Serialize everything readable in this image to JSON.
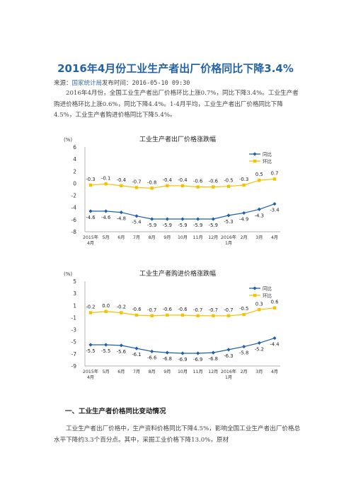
{
  "article": {
    "title": "2016年4月份工业生产者出厂价格同比下降3.4%",
    "source_prefix": "来源：",
    "source_name": "国家统计局",
    "publish_label": "发布时间：",
    "publish_time": "2016-05-10  09:30",
    "intro": "2016年4月份，全国工业生产者出厂价格环比上涨0.7%，同比下降3.4%。工业生产者购进价格环比上涨0.6%，同比下降4.4%。1-4月平均，工业生产者出厂价格同比下降4.5%，工业生产者购进价格同比下降5.4%。",
    "section1_heading": "一、工业生产者价格同比变动情况",
    "section1_text": "工业生产者出厂价格中，生产资料价格同比下降4.5%，影响全国工业生产者出厂价格总水平下降约3.3个百分点。其中，采掘工业价格下降13.0%，原材"
  },
  "chart_data": [
    {
      "type": "line",
      "title": "工业生产者出厂价格涨跌幅",
      "unit_label": "(%)",
      "categories": [
        "2015年\n4月",
        "5月",
        "6月",
        "7月",
        "8月",
        "9月",
        "10月",
        "11月",
        "12月",
        "2016年\n1月",
        "2月",
        "3月",
        "4月"
      ],
      "ylim": [
        -8,
        6
      ],
      "yticks": [
        -8,
        -6,
        -4,
        -2,
        0,
        2,
        4,
        6
      ],
      "series": [
        {
          "name": "同比",
          "color": "#1f5fae",
          "values": [
            -4.6,
            -4.6,
            -4.8,
            -5.4,
            -5.9,
            -5.9,
            -5.9,
            -5.9,
            -5.9,
            -5.3,
            -4.9,
            -4.3,
            -3.4
          ]
        },
        {
          "name": "环比",
          "color": "#f4c200",
          "values": [
            -0.3,
            -0.1,
            -0.4,
            -0.7,
            -0.8,
            -0.4,
            -0.4,
            -0.6,
            -0.6,
            -0.5,
            -0.3,
            0.5,
            0.7
          ]
        }
      ],
      "legend": "top-right",
      "grid": false
    },
    {
      "type": "line",
      "title": "工业生产者购进价格涨跌幅",
      "unit_label": "(%)",
      "categories": [
        "2015年\n4月",
        "5月",
        "6月",
        "7月",
        "8月",
        "9月",
        "10月",
        "11月",
        "12月",
        "2016年\n1月",
        "2月",
        "3月",
        "4月"
      ],
      "ylim": [
        -9,
        5
      ],
      "yticks": [
        -9,
        -7,
        -5,
        -3,
        -1,
        1,
        3,
        5
      ],
      "series": [
        {
          "name": "同比",
          "color": "#1f5fae",
          "values": [
            -5.5,
            -5.5,
            -5.6,
            -6.1,
            -6.6,
            -6.8,
            -6.9,
            -6.9,
            -6.8,
            -6.3,
            -5.8,
            -5.2,
            -4.4
          ]
        },
        {
          "name": "环比",
          "color": "#f4c200",
          "values": [
            -0.2,
            0.0,
            -0.2,
            -0.6,
            -0.7,
            -0.6,
            -0.6,
            -0.7,
            -0.7,
            -0.7,
            -0.5,
            0.3,
            0.6
          ]
        }
      ],
      "legend": "top-right",
      "grid": false
    }
  ]
}
